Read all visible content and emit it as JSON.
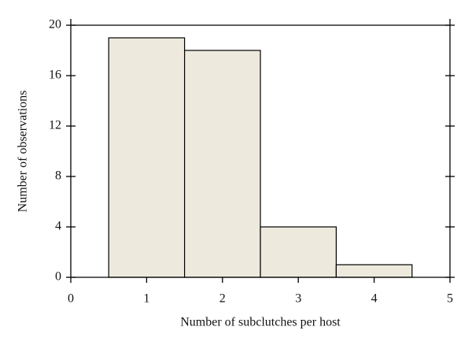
{
  "chart_data": {
    "type": "histogram",
    "x_label": "Number of subclutches per host",
    "y_label": "Number of observations",
    "bins": [
      0.5,
      1.5,
      2.5,
      3.5,
      4.5
    ],
    "values": [
      19,
      18,
      4,
      1
    ],
    "color": "#ede9dd",
    "xlim": [
      0,
      5
    ],
    "xticks": [
      0,
      1,
      2,
      3,
      4,
      5
    ],
    "ylim": [
      0,
      20
    ],
    "yticks": [
      0,
      4,
      8,
      12,
      16,
      20
    ]
  }
}
